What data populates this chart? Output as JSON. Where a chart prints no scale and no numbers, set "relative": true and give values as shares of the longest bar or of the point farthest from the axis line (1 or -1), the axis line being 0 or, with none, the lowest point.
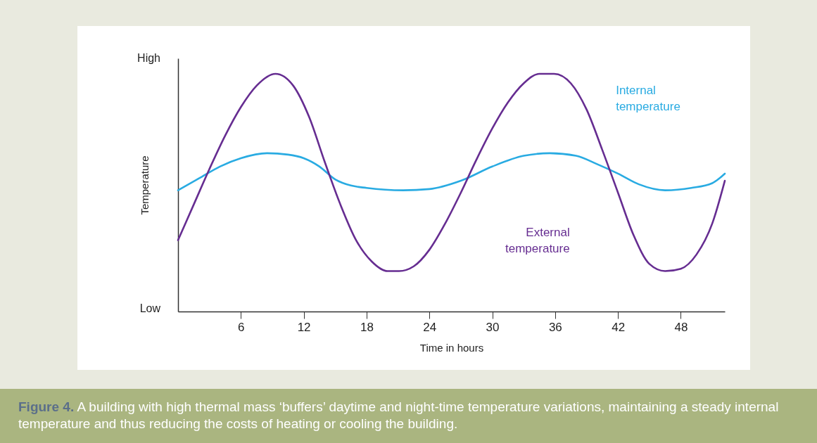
{
  "chart_data": {
    "type": "line",
    "relative": true,
    "xlabel": "Time in hours",
    "ylabel": "Temperature",
    "xlim": [
      0,
      52.2
    ],
    "xticks": [
      6,
      12,
      18,
      24,
      30,
      36,
      42,
      48
    ],
    "grid": false,
    "legend": false,
    "marker": "none",
    "line_style": "solid",
    "annotations": [
      "High",
      "Low",
      "Figure 4. A building with high thermal mass ‘buffers’ daytime and night-time temperature variations, maintaining a steady internal temperature and thus reducing the costs of heating or cooling the building."
    ],
    "series": [
      {
        "name": "Internal temperature",
        "color": "#29abe2",
        "x": [
          0,
          2,
          4,
          6,
          8.5,
          10.5,
          12,
          13.5,
          15,
          16.5,
          18,
          21.5,
          24,
          27,
          30,
          33,
          35.5,
          38,
          40,
          42,
          44,
          46.5,
          49,
          51,
          52.2
        ],
        "values": [
          0.51,
          0.56,
          0.61,
          0.645,
          0.666,
          0.66,
          0.645,
          0.61,
          0.556,
          0.53,
          0.52,
          0.51,
          0.515,
          0.55,
          0.61,
          0.655,
          0.666,
          0.655,
          0.62,
          0.58,
          0.535,
          0.51,
          0.52,
          0.54,
          0.58
        ]
      },
      {
        "name": "External temperature",
        "color": "#662d91",
        "x": [
          0,
          1.5,
          3,
          4.5,
          6,
          7.5,
          9.3,
          11,
          12.5,
          14,
          15.5,
          17,
          18.5,
          20,
          21.1,
          22.5,
          24,
          25.5,
          27,
          28.5,
          30,
          31.5,
          33,
          34.5,
          35.9,
          37.5,
          39,
          40.5,
          42,
          43.5,
          45,
          46.5,
          48,
          49.5,
          51,
          52.2
        ],
        "values": [
          0.3,
          0.45,
          0.6,
          0.74,
          0.86,
          0.95,
          1.0,
          0.95,
          0.82,
          0.63,
          0.45,
          0.3,
          0.21,
          0.17,
          0.17,
          0.19,
          0.26,
          0.37,
          0.5,
          0.64,
          0.77,
          0.88,
          0.96,
          1.0,
          1.0,
          0.96,
          0.85,
          0.68,
          0.5,
          0.32,
          0.2,
          0.17,
          0.18,
          0.24,
          0.37,
          0.55
        ]
      }
    ]
  }
}
